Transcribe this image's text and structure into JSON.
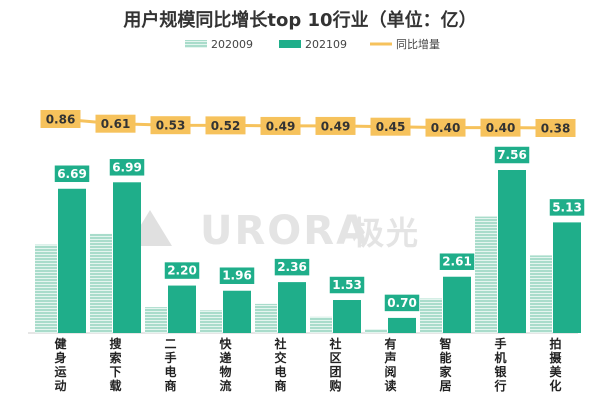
{
  "watermark": {
    "text": "URORA",
    "cn": "极光"
  },
  "chart_data": {
    "type": "bar",
    "title": "用户规模同比增长top 10行业（单位：亿）",
    "categories": [
      "健身运动",
      "搜索下载",
      "二手电商",
      "快递物流",
      "社交电商",
      "社区团购",
      "有声阅读",
      "智能家居",
      "手机银行",
      "拍摄美化"
    ],
    "series": [
      {
        "name": "202009",
        "type": "bar",
        "values": [
          4.1,
          4.6,
          1.2,
          1.05,
          1.35,
          0.75,
          0.18,
          1.6,
          5.4,
          3.6
        ],
        "color": "#a9dccb"
      },
      {
        "name": "202109",
        "type": "bar",
        "values": [
          6.69,
          6.99,
          2.2,
          1.96,
          2.36,
          1.53,
          0.7,
          2.61,
          7.56,
          5.13
        ],
        "labels": [
          "6.69",
          "6.99",
          "2.20",
          "1.96",
          "2.36",
          "1.53",
          "0.70",
          "2.61",
          "7.56",
          "5.13"
        ],
        "color": "#1fae8a"
      },
      {
        "name": "同比增量",
        "type": "line",
        "values": [
          0.86,
          0.61,
          0.53,
          0.52,
          0.49,
          0.49,
          0.45,
          0.4,
          0.4,
          0.38
        ],
        "labels": [
          "0.86",
          "0.61",
          "0.53",
          "0.52",
          "0.49",
          "0.49",
          "0.45",
          "0.40",
          "0.40",
          "0.38"
        ],
        "color": "#f6c25c"
      }
    ],
    "ylim": [
      0,
      8.5
    ],
    "line_ylim": [
      0,
      1.0
    ],
    "legend_position": "top-left",
    "grid": false
  }
}
